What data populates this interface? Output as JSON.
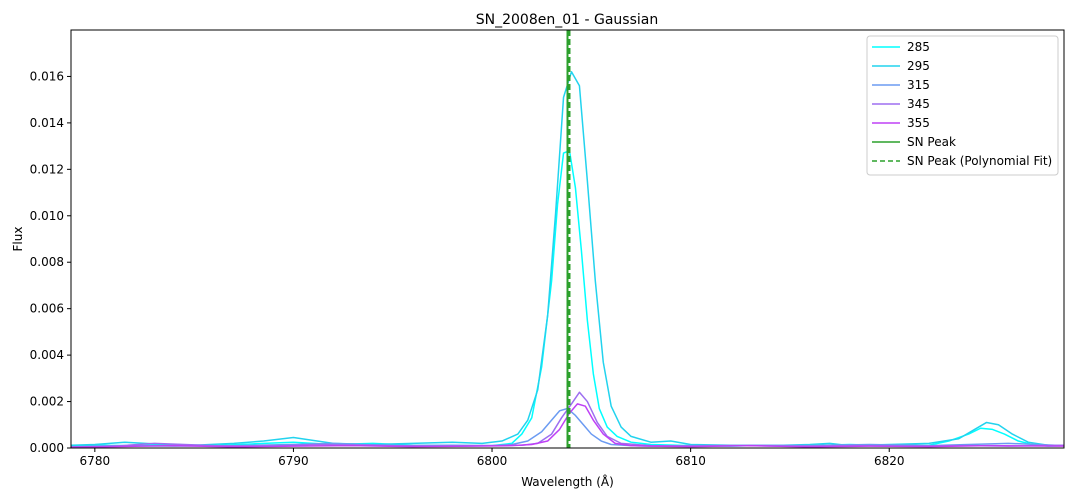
{
  "chart_data": {
    "type": "line",
    "title": "SN_2008en_01 - Gaussian",
    "xlabel": "Wavelength (Å)",
    "ylabel": "Flux",
    "xlim": [
      6778.8,
      6828.8
    ],
    "ylim": [
      0,
      0.018
    ],
    "xticks": [
      6780,
      6790,
      6800,
      6810,
      6820
    ],
    "xtick_labels": [
      "6780",
      "6790",
      "6800",
      "6810",
      "6820"
    ],
    "yticks": [
      0,
      0.002,
      0.004,
      0.006,
      0.008,
      0.01,
      0.012,
      0.014,
      0.016
    ],
    "ytick_labels": [
      "0.000",
      "0.002",
      "0.004",
      "0.006",
      "0.008",
      "0.010",
      "0.012",
      "0.014",
      "0.016"
    ],
    "grid": false,
    "legend_position": "top-right",
    "series": [
      {
        "name": "285",
        "color": "#00ffff",
        "x": [
          6778.8,
          6780,
          6782,
          6784,
          6786,
          6788,
          6790,
          6792,
          6794,
          6796,
          6798,
          6800,
          6801,
          6801.5,
          6802,
          6802.5,
          6803,
          6803.3,
          6803.6,
          6803.9,
          6804.2,
          6804.5,
          6804.8,
          6805.1,
          6805.4,
          6805.8,
          6806.3,
          6807,
          6808,
          6810,
          6812,
          6814,
          6816,
          6818,
          6820,
          6822,
          6823,
          6824,
          6824.6,
          6825.2,
          6825.8,
          6826.5,
          6827.2,
          6828,
          6828.8
        ],
        "y": [
          8e-05,
          0.00012,
          0.0001,
          0.00015,
          0.0001,
          0.00018,
          0.00025,
          0.00015,
          0.0002,
          0.00012,
          0.0001,
          0.0001,
          0.0002,
          0.0006,
          0.0013,
          0.0035,
          0.0072,
          0.0105,
          0.0127,
          0.0128,
          0.0112,
          0.0085,
          0.0055,
          0.0032,
          0.0017,
          0.0009,
          0.0005,
          0.00025,
          0.00015,
          0.0001,
          8e-05,
          0.00012,
          0.0001,
          0.00015,
          0.0001,
          0.00012,
          0.0003,
          0.0006,
          0.00085,
          0.0008,
          0.0006,
          0.0003,
          0.00015,
          8e-05,
          0.0001
        ]
      },
      {
        "name": "295",
        "color": "#22d3ee",
        "x": [
          6778.8,
          6780,
          6781.5,
          6783,
          6785,
          6787,
          6788.5,
          6790,
          6792,
          6794,
          6796,
          6798,
          6799.5,
          6800.5,
          6801.3,
          6801.8,
          6802.3,
          6802.8,
          6803.2,
          6803.6,
          6804,
          6804.4,
          6804.8,
          6805.2,
          6805.6,
          6806,
          6806.5,
          6807,
          6808,
          6809,
          6810,
          6812,
          6814,
          6816,
          6817,
          6818,
          6820,
          6822,
          6823.5,
          6824.3,
          6824.9,
          6825.5,
          6826.2,
          6827,
          6828,
          6828.8
        ],
        "y": [
          0.00012,
          0.00015,
          0.00025,
          0.00018,
          0.00012,
          0.0002,
          0.0003,
          0.00045,
          0.0002,
          0.00015,
          0.0002,
          0.00025,
          0.0002,
          0.0003,
          0.0006,
          0.0012,
          0.0025,
          0.0057,
          0.0101,
          0.0151,
          0.0162,
          0.0156,
          0.0115,
          0.0072,
          0.0037,
          0.0018,
          0.0009,
          0.0005,
          0.00025,
          0.0003,
          0.00015,
          0.00012,
          0.0001,
          0.00015,
          0.0002,
          0.0001,
          0.00015,
          0.0002,
          0.0004,
          0.0008,
          0.0011,
          0.001,
          0.0006,
          0.00025,
          0.00012,
          0.0001
        ]
      },
      {
        "name": "315",
        "color": "#6b9bf2",
        "x": [
          6778.8,
          6781,
          6784,
          6787,
          6790,
          6792,
          6795,
          6798,
          6800,
          6801,
          6801.8,
          6802.5,
          6803,
          6803.4,
          6803.8,
          6804.2,
          6804.6,
          6805,
          6805.5,
          6806,
          6807,
          6808,
          6810,
          6813,
          6816,
          6819,
          6822,
          6824,
          6826,
          6828.8
        ],
        "y": [
          5e-05,
          0.0001,
          8e-05,
          0.0001,
          0.00015,
          0.0002,
          0.0001,
          0.00012,
          0.0001,
          0.00015,
          0.0003,
          0.0007,
          0.0012,
          0.0016,
          0.0017,
          0.0014,
          0.001,
          0.0006,
          0.0003,
          0.00015,
          0.0001,
          8e-05,
          0.0001,
          0.00012,
          0.0001,
          0.00015,
          0.0001,
          0.00015,
          0.0002,
          0.0001
        ]
      },
      {
        "name": "345",
        "color": "#9d6ff0",
        "x": [
          6778.8,
          6781,
          6783,
          6786,
          6789,
          6791,
          6794,
          6797,
          6800,
          6801.5,
          6802.3,
          6803,
          6803.5,
          6804,
          6804.4,
          6804.8,
          6805.3,
          6805.8,
          6806.5,
          6808,
          6810,
          6812,
          6815,
          6818,
          6821,
          6824,
          6826,
          6828.8
        ],
        "y": [
          3e-05,
          8e-05,
          0.0002,
          0.0001,
          8e-05,
          0.00015,
          0.00012,
          8e-05,
          0.0001,
          0.00012,
          0.0002,
          0.0006,
          0.0013,
          0.0019,
          0.0024,
          0.002,
          0.0011,
          0.0005,
          0.0002,
          0.0001,
          8e-05,
          0.0001,
          8e-05,
          0.0001,
          8e-05,
          0.0001,
          8e-05,
          0.00012
        ]
      },
      {
        "name": "355",
        "color": "#bf40f5",
        "x": [
          6778.8,
          6781,
          6784,
          6787,
          6790,
          6793,
          6796,
          6799,
          6801,
          6802,
          6802.8,
          6803.4,
          6803.9,
          6804.3,
          6804.7,
          6805.1,
          6805.6,
          6806.2,
          6807,
          6808,
          6810,
          6813,
          6816,
          6819,
          6822,
          6825,
          6828.8
        ],
        "y": [
          4e-05,
          6e-05,
          0.0001,
          5e-05,
          8e-05,
          0.0001,
          6e-05,
          8e-05,
          0.0001,
          0.00015,
          0.0003,
          0.0008,
          0.0015,
          0.0019,
          0.0018,
          0.0012,
          0.0006,
          0.0002,
          0.0001,
          8e-05,
          6e-05,
          0.0001,
          5e-05,
          8e-05,
          6e-05,
          0.0001,
          8e-05
        ]
      }
    ],
    "vlines": [
      {
        "name": "SN Peak",
        "x": 6803.8,
        "color": "#2ca02c",
        "style": "solid"
      },
      {
        "name": "SN Peak (Polynomial Fit)",
        "x": 6803.9,
        "color": "#2ca02c",
        "style": "dashed"
      }
    ]
  }
}
